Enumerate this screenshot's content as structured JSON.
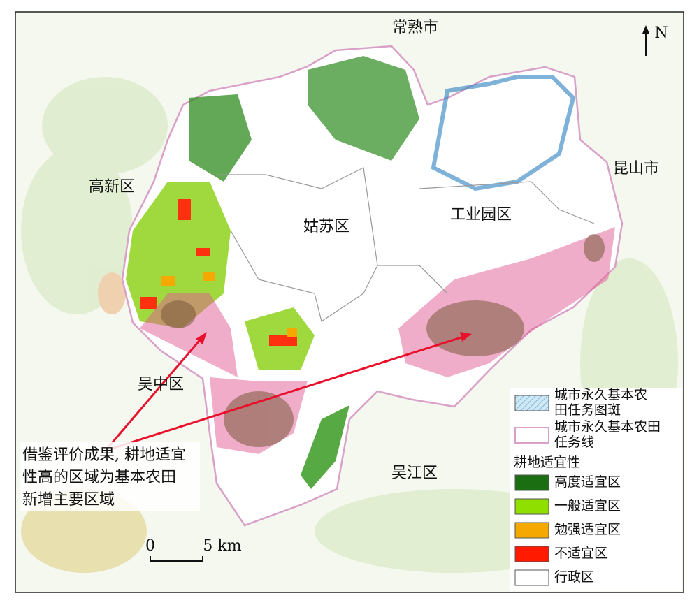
{
  "north": "N",
  "place_labels": {
    "changshu": "常熟市",
    "kunshan": "昆山市",
    "gaoxin": "高新区",
    "gusu": "姑苏区",
    "gongye": "工业园区",
    "wuzhong": "吴中区",
    "wujiang": "吴江区"
  },
  "annotation": [
    "借鉴评价成果, 耕地适宜",
    "性高的区域为基本农田",
    "新增主要区域"
  ],
  "scale_bar": {
    "start": "0",
    "end": "5 km"
  },
  "legend": {
    "items_top": [
      {
        "lines": [
          "城市永久基本农",
          "田任务图斑"
        ]
      },
      {
        "lines": [
          "城市永久基本农田",
          "任务线"
        ]
      }
    ],
    "title": "耕地适宜性",
    "items": [
      {
        "label": "高度适宜区",
        "color": "#1b6e12"
      },
      {
        "label": "一般适宜区",
        "color": "#8fe000"
      },
      {
        "label": "勉强适宜区",
        "color": "#f5a800"
      },
      {
        "label": "不适宜区",
        "color": "#ff1a00"
      },
      {
        "label": "行政区",
        "color": "#ffffff"
      }
    ]
  }
}
